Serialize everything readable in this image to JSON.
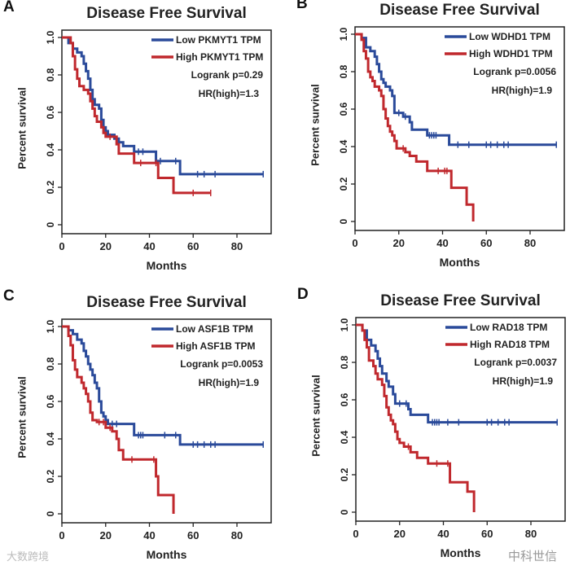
{
  "chart_data": [
    {
      "type": "line",
      "panel": "A",
      "title": "Disease Free Survival",
      "xlabel": "Months",
      "ylabel": "Percent survival",
      "xticks": [
        0,
        20,
        40,
        60,
        80
      ],
      "yticks": [
        "0",
        "0.2",
        "0.4",
        "0.6",
        "0.8",
        "1.0"
      ],
      "xlim": [
        0,
        95
      ],
      "ylim": [
        0,
        1
      ],
      "legend_position": "top-right",
      "logrank": "Logrank p=0.29",
      "hr": "HR(high)=1.3",
      "series": [
        {
          "name": "Low PKMYT1 TPM",
          "color": "#2a4a9a",
          "end": 92,
          "steps": [
            [
              0,
              1
            ],
            [
              3,
              0.97
            ],
            [
              5,
              0.94
            ],
            [
              7,
              0.92
            ],
            [
              9,
              0.9
            ],
            [
              10,
              0.86
            ],
            [
              11,
              0.82
            ],
            [
              12,
              0.78
            ],
            [
              13,
              0.72
            ],
            [
              14,
              0.67
            ],
            [
              15,
              0.64
            ],
            [
              17,
              0.62
            ],
            [
              18,
              0.56
            ],
            [
              19,
              0.52
            ],
            [
              20,
              0.5
            ],
            [
              21,
              0.48
            ],
            [
              24,
              0.46
            ],
            [
              26,
              0.44
            ],
            [
              28,
              0.42
            ],
            [
              33,
              0.39
            ],
            [
              43,
              0.34
            ],
            [
              54,
              0.27
            ]
          ],
          "censored": [
            35,
            37,
            45,
            52,
            62,
            65,
            70,
            92
          ]
        },
        {
          "name": "High PKMYT1 TPM",
          "color": "#c0282d",
          "end": 68,
          "steps": [
            [
              0,
              1
            ],
            [
              4,
              0.97
            ],
            [
              5,
              0.9
            ],
            [
              6,
              0.83
            ],
            [
              7,
              0.78
            ],
            [
              8,
              0.74
            ],
            [
              10,
              0.72
            ],
            [
              12,
              0.7
            ],
            [
              13,
              0.66
            ],
            [
              14,
              0.62
            ],
            [
              15,
              0.58
            ],
            [
              16,
              0.55
            ],
            [
              18,
              0.52
            ],
            [
              19,
              0.49
            ],
            [
              20,
              0.47
            ],
            [
              25,
              0.43
            ],
            [
              26,
              0.38
            ],
            [
              33,
              0.33
            ],
            [
              44,
              0.25
            ],
            [
              51,
              0.17
            ]
          ],
          "censored": [
            22,
            36,
            43,
            60,
            68
          ]
        }
      ]
    },
    {
      "type": "line",
      "panel": "B",
      "title": "Disease Free Survival",
      "xlabel": "Months",
      "ylabel": "Percent survival",
      "xticks": [
        0,
        20,
        40,
        60,
        80
      ],
      "yticks": [
        "0",
        "0.2",
        "0.4",
        "0.6",
        "0.8",
        "1.0"
      ],
      "xlim": [
        0,
        95
      ],
      "ylim": [
        0,
        1
      ],
      "legend_position": "top-right",
      "logrank": "Logrank p=0.0056",
      "hr": "HR(high)=1.9",
      "series": [
        {
          "name": "Low WDHD1 TPM",
          "color": "#2a4a9a",
          "end": 92,
          "steps": [
            [
              0,
              1
            ],
            [
              3,
              0.98
            ],
            [
              5,
              0.93
            ],
            [
              7,
              0.91
            ],
            [
              9,
              0.88
            ],
            [
              10,
              0.84
            ],
            [
              11,
              0.8
            ],
            [
              12,
              0.76
            ],
            [
              13,
              0.74
            ],
            [
              14,
              0.72
            ],
            [
              16,
              0.7
            ],
            [
              17,
              0.67
            ],
            [
              18,
              0.58
            ],
            [
              22,
              0.56
            ],
            [
              25,
              0.53
            ],
            [
              26,
              0.49
            ],
            [
              33,
              0.46
            ],
            [
              43,
              0.41
            ]
          ],
          "censored": [
            20,
            23,
            34,
            35,
            36,
            37,
            47,
            52,
            60,
            62,
            65,
            68,
            70,
            92
          ]
        },
        {
          "name": "High WDHD1 TPM",
          "color": "#c0282d",
          "end": 54,
          "steps": [
            [
              0,
              1
            ],
            [
              3,
              0.97
            ],
            [
              4,
              0.91
            ],
            [
              5,
              0.87
            ],
            [
              6,
              0.8
            ],
            [
              7,
              0.77
            ],
            [
              8,
              0.75
            ],
            [
              9,
              0.72
            ],
            [
              11,
              0.7
            ],
            [
              12,
              0.67
            ],
            [
              13,
              0.6
            ],
            [
              14,
              0.55
            ],
            [
              15,
              0.51
            ],
            [
              16,
              0.48
            ],
            [
              17,
              0.46
            ],
            [
              18,
              0.43
            ],
            [
              19,
              0.39
            ],
            [
              23,
              0.37
            ],
            [
              25,
              0.35
            ],
            [
              28,
              0.32
            ],
            [
              33,
              0.27
            ],
            [
              44,
              0.18
            ],
            [
              51,
              0.09
            ],
            [
              54,
              0
            ]
          ],
          "censored": [
            22,
            38,
            41,
            42
          ]
        }
      ]
    },
    {
      "type": "line",
      "panel": "C",
      "title": "Disease Free Survival",
      "xlabel": "Months",
      "ylabel": "Percent survival",
      "xticks": [
        0,
        20,
        40,
        60,
        80
      ],
      "yticks": [
        "0",
        "0.2",
        "0.4",
        "0.6",
        "0.8",
        "1.0"
      ],
      "xlim": [
        0,
        95
      ],
      "ylim": [
        0,
        1
      ],
      "legend_position": "top-right",
      "logrank": "Logrank p=0.0053",
      "hr": "HR(high)=1.9",
      "series": [
        {
          "name": "Low ASF1B TPM",
          "color": "#2a4a9a",
          "end": 92,
          "steps": [
            [
              0,
              1
            ],
            [
              3,
              0.98
            ],
            [
              5,
              0.96
            ],
            [
              7,
              0.93
            ],
            [
              9,
              0.91
            ],
            [
              10,
              0.87
            ],
            [
              11,
              0.84
            ],
            [
              12,
              0.8
            ],
            [
              13,
              0.77
            ],
            [
              14,
              0.74
            ],
            [
              15,
              0.7
            ],
            [
              16,
              0.67
            ],
            [
              17,
              0.6
            ],
            [
              18,
              0.54
            ],
            [
              19,
              0.52
            ],
            [
              20,
              0.5
            ],
            [
              21,
              0.48
            ],
            [
              33,
              0.42
            ],
            [
              54,
              0.37
            ]
          ],
          "censored": [
            23,
            25,
            35,
            36,
            37,
            47,
            52,
            60,
            62,
            65,
            68,
            70,
            92
          ]
        },
        {
          "name": "High ASF1B TPM",
          "color": "#c0282d",
          "end": 51,
          "steps": [
            [
              0,
              1
            ],
            [
              3,
              0.95
            ],
            [
              4,
              0.9
            ],
            [
              5,
              0.82
            ],
            [
              6,
              0.77
            ],
            [
              7,
              0.73
            ],
            [
              9,
              0.7
            ],
            [
              10,
              0.67
            ],
            [
              11,
              0.64
            ],
            [
              12,
              0.6
            ],
            [
              13,
              0.54
            ],
            [
              14,
              0.5
            ],
            [
              16,
              0.49
            ],
            [
              20,
              0.46
            ],
            [
              23,
              0.44
            ],
            [
              25,
              0.4
            ],
            [
              26,
              0.34
            ],
            [
              28,
              0.29
            ],
            [
              43,
              0.2
            ],
            [
              44,
              0.1
            ],
            [
              51,
              0
            ]
          ],
          "censored": [
            17,
            19,
            22,
            32,
            42
          ]
        }
      ]
    },
    {
      "type": "line",
      "panel": "D",
      "title": "Disease Free Survival",
      "xlabel": "Months",
      "ylabel": "Percent survival",
      "xticks": [
        0,
        20,
        40,
        60,
        80
      ],
      "yticks": [
        "0",
        "0.2",
        "0.4",
        "0.6",
        "0.8",
        "1.0"
      ],
      "xlim": [
        0,
        95
      ],
      "ylim": [
        0,
        1
      ],
      "legend_position": "top-right",
      "logrank": "Logrank p=0.0037",
      "hr": "HR(high)=1.9",
      "series": [
        {
          "name": "Low RAD18 TPM",
          "color": "#2a4a9a",
          "end": 92,
          "steps": [
            [
              0,
              1
            ],
            [
              3,
              0.97
            ],
            [
              5,
              0.92
            ],
            [
              7,
              0.89
            ],
            [
              9,
              0.86
            ],
            [
              10,
              0.82
            ],
            [
              11,
              0.78
            ],
            [
              12,
              0.74
            ],
            [
              14,
              0.7
            ],
            [
              15,
              0.67
            ],
            [
              17,
              0.63
            ],
            [
              18,
              0.58
            ],
            [
              24,
              0.55
            ],
            [
              25,
              0.52
            ],
            [
              33,
              0.48
            ]
          ],
          "censored": [
            20,
            23,
            35,
            36,
            37,
            38,
            42,
            47,
            60,
            62,
            65,
            68,
            70,
            92
          ]
        },
        {
          "name": "High RAD18 TPM",
          "color": "#c0282d",
          "end": 54,
          "steps": [
            [
              0,
              1
            ],
            [
              3,
              0.97
            ],
            [
              4,
              0.92
            ],
            [
              5,
              0.88
            ],
            [
              6,
              0.81
            ],
            [
              8,
              0.78
            ],
            [
              9,
              0.74
            ],
            [
              10,
              0.71
            ],
            [
              12,
              0.68
            ],
            [
              13,
              0.62
            ],
            [
              14,
              0.56
            ],
            [
              15,
              0.52
            ],
            [
              16,
              0.49
            ],
            [
              17,
              0.47
            ],
            [
              18,
              0.43
            ],
            [
              19,
              0.39
            ],
            [
              20,
              0.37
            ],
            [
              22,
              0.35
            ],
            [
              25,
              0.32
            ],
            [
              28,
              0.29
            ],
            [
              33,
              0.26
            ],
            [
              43,
              0.16
            ],
            [
              51,
              0.11
            ],
            [
              54,
              0
            ]
          ],
          "censored": [
            24,
            37,
            42
          ]
        }
      ]
    }
  ],
  "watermarks": {
    "left": "大数跨境",
    "right": "中科世信"
  }
}
